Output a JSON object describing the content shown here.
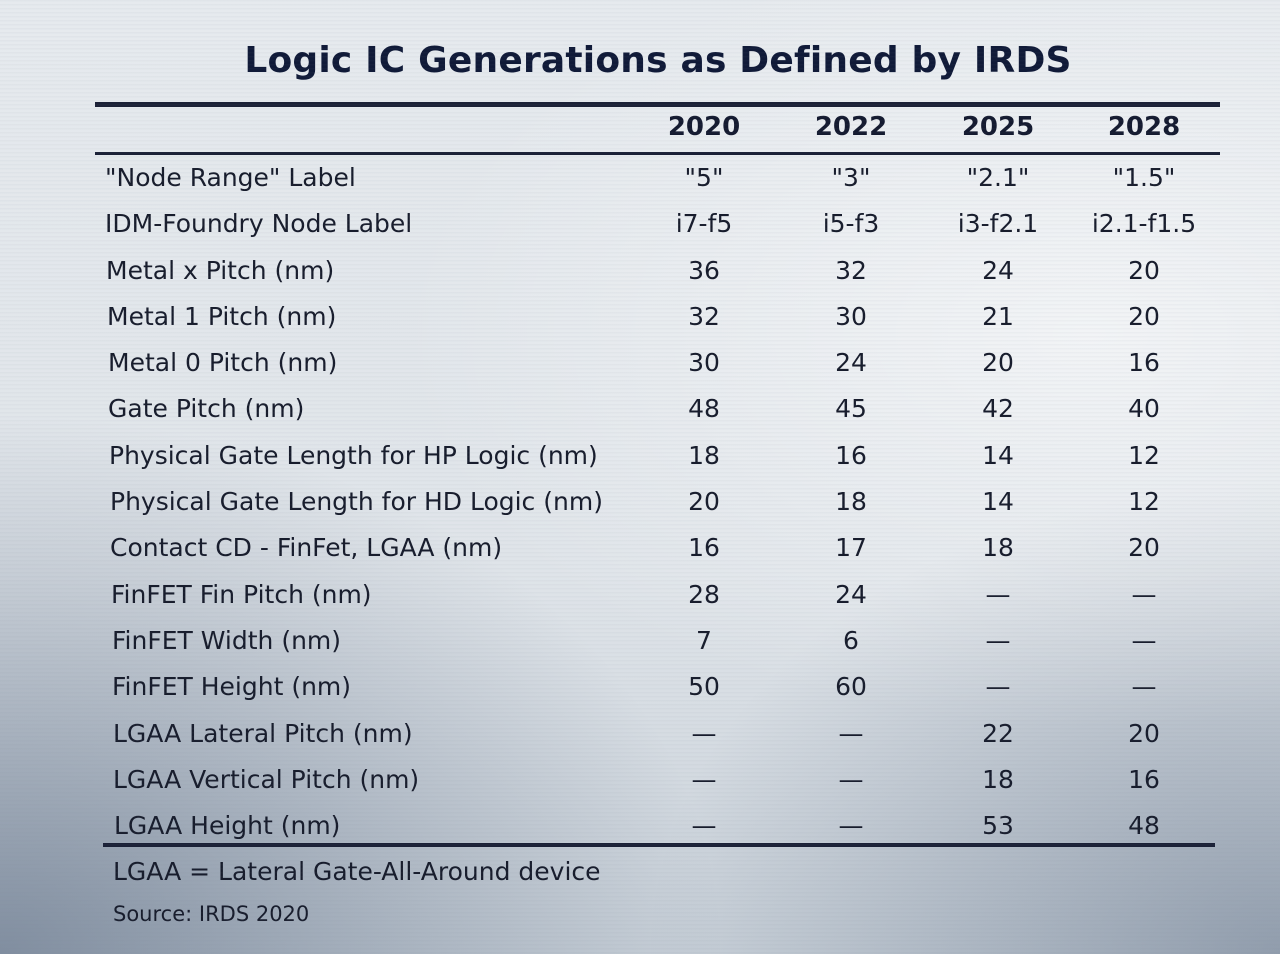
{
  "title": "Logic IC Generations as Defined by IRDS",
  "columns": [
    "2020",
    "2022",
    "2025",
    "2028"
  ],
  "rows": [
    {
      "label": "\"Node Range\" Label",
      "values": [
        "\"5\"",
        "\"3\"",
        "\"2.1\"",
        "\"1.5\""
      ]
    },
    {
      "label": "IDM-Foundry Node Label",
      "values": [
        "i7-f5",
        "i5-f3",
        "i3-f2.1",
        "i2.1-f1.5"
      ]
    },
    {
      "label": "Metal x Pitch (nm)",
      "values": [
        "36",
        "32",
        "24",
        "20"
      ]
    },
    {
      "label": "Metal 1 Pitch (nm)",
      "values": [
        "32",
        "30",
        "21",
        "20"
      ]
    },
    {
      "label": "Metal 0 Pitch (nm)",
      "values": [
        "30",
        "24",
        "20",
        "16"
      ]
    },
    {
      "label": "Gate Pitch (nm)",
      "values": [
        "48",
        "45",
        "42",
        "40"
      ]
    },
    {
      "label": "Physical Gate Length for HP Logic (nm)",
      "values": [
        "18",
        "16",
        "14",
        "12"
      ]
    },
    {
      "label": "Physical Gate Length for HD Logic (nm)",
      "values": [
        "20",
        "18",
        "14",
        "12"
      ]
    },
    {
      "label": "Contact CD - FinFet, LGAA (nm)",
      "values": [
        "16",
        "17",
        "18",
        "20"
      ]
    },
    {
      "label": "FinFET Fin Pitch (nm)",
      "values": [
        "28",
        "24",
        "—",
        "—"
      ]
    },
    {
      "label": "FinFET Width (nm)",
      "values": [
        "7",
        "6",
        "—",
        "—"
      ]
    },
    {
      "label": "FinFET Height (nm)",
      "values": [
        "50",
        "60",
        "—",
        "—"
      ]
    },
    {
      "label": "LGAA Lateral Pitch (nm)",
      "values": [
        "—",
        "—",
        "22",
        "20"
      ]
    },
    {
      "label": "LGAA Vertical Pitch (nm)",
      "values": [
        "—",
        "—",
        "18",
        "16"
      ]
    },
    {
      "label": "LGAA Height (nm)",
      "values": [
        "—",
        "—",
        "53",
        "48"
      ]
    }
  ],
  "footnote": "LGAA = Lateral Gate-All-Around device",
  "source": "Source:  IRDS 2020"
}
